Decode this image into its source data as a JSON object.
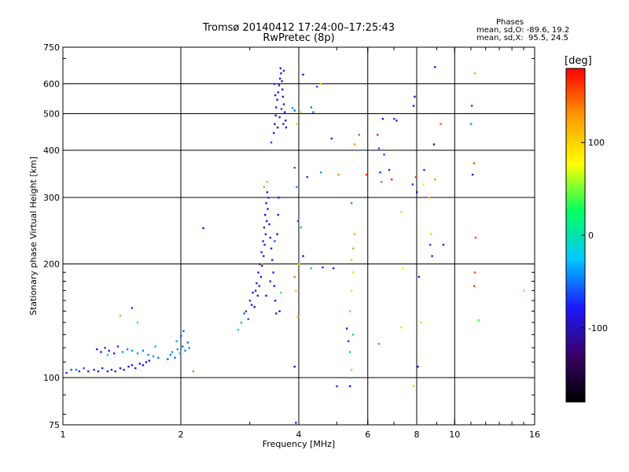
{
  "header": {
    "title": "Tromsø 20140412 17:24:00–17:25:43",
    "subtitle": "RwPretec (8p)"
  },
  "stats": {
    "heading": "Phases",
    "o_mode": "mean, sd,O: -89.6, 19.2",
    "x_mode": "mean, sd,X:  95.5, 24.5"
  },
  "colorbar": {
    "title": "[deg]",
    "range": [
      -180,
      180
    ],
    "ticks": [
      {
        "value": 100,
        "label": "100"
      },
      {
        "value": 0,
        "label": "0"
      },
      {
        "value": -100,
        "label": "-100"
      }
    ],
    "stops": [
      "#000000",
      "#3a006a",
      "#1a1aff",
      "#00c8ff",
      "#00ff60",
      "#ffff00",
      "#ff9a00",
      "#ff0000"
    ]
  },
  "chart_data": {
    "type": "scatter",
    "title": "Tromsø 20140412 17:24:00–17:25:43",
    "subtitle": "RwPretec (8p)",
    "xlabel": "Frequency [MHz]",
    "ylabel": "Stationary phase Virtual Height [km]",
    "x_scale": "log",
    "y_scale": "log",
    "xlim": [
      1,
      16
    ],
    "ylim": [
      75,
      750
    ],
    "grid": true,
    "x_ticks": [
      {
        "value": 1,
        "label": "1"
      },
      {
        "value": 2,
        "label": "2"
      },
      {
        "value": 4,
        "label": "4"
      },
      {
        "value": 6,
        "label": "6"
      },
      {
        "value": 8,
        "label": "8"
      },
      {
        "value": 10,
        "label": "10"
      },
      {
        "value": 16,
        "label": "16"
      }
    ],
    "x_gridlines": [
      2,
      4,
      6,
      8,
      10
    ],
    "y_ticks": [
      {
        "value": 75,
        "label": "75"
      },
      {
        "value": 100,
        "label": "100"
      },
      {
        "value": 200,
        "label": "200"
      },
      {
        "value": 300,
        "label": "300"
      },
      {
        "value": 400,
        "label": "400"
      },
      {
        "value": 500,
        "label": "500"
      },
      {
        "value": 600,
        "label": "600"
      },
      {
        "value": 750,
        "label": "750"
      }
    ],
    "y_gridlines": [
      100,
      200,
      300,
      400,
      500,
      600
    ],
    "color_variable": "phase [deg]",
    "points": [
      [
        1.02,
        103,
        -70
      ],
      [
        1.05,
        105,
        -60
      ],
      [
        1.08,
        105,
        -50
      ],
      [
        1.1,
        104,
        -70
      ],
      [
        1.13,
        106,
        -60
      ],
      [
        1.16,
        104,
        -75
      ],
      [
        1.2,
        105,
        -80
      ],
      [
        1.23,
        104,
        -75
      ],
      [
        1.26,
        106,
        -70
      ],
      [
        1.3,
        104,
        -80
      ],
      [
        1.33,
        105,
        -85
      ],
      [
        1.36,
        104,
        -80
      ],
      [
        1.4,
        106,
        -80
      ],
      [
        1.43,
        105,
        -85
      ],
      [
        1.47,
        107,
        -80
      ],
      [
        1.5,
        108,
        -85
      ],
      [
        1.53,
        106,
        -80
      ],
      [
        1.57,
        109,
        -85
      ],
      [
        1.6,
        108,
        -80
      ],
      [
        1.63,
        110,
        -85
      ],
      [
        1.66,
        111,
        -80
      ],
      [
        1.22,
        119,
        -80
      ],
      [
        1.25,
        117,
        -75
      ],
      [
        1.28,
        120,
        -70
      ],
      [
        1.31,
        118,
        -80
      ],
      [
        1.35,
        116,
        -75
      ],
      [
        1.38,
        121,
        -70
      ],
      [
        1.42,
        117,
        -40
      ],
      [
        1.46,
        119,
        -50
      ],
      [
        1.5,
        118,
        -45
      ],
      [
        1.55,
        116,
        -40
      ],
      [
        1.6,
        118,
        -50
      ],
      [
        1.65,
        115,
        -40
      ],
      [
        1.7,
        114,
        -45
      ],
      [
        1.75,
        113,
        -50
      ],
      [
        1.72,
        121,
        -30
      ],
      [
        1.3,
        115,
        -30
      ],
      [
        1.85,
        112,
        -60
      ],
      [
        1.88,
        115,
        -50
      ],
      [
        1.9,
        117,
        -40
      ],
      [
        1.93,
        113,
        -55
      ],
      [
        1.96,
        119,
        -45
      ],
      [
        1.99,
        116,
        -40
      ],
      [
        2.02,
        121,
        -50
      ],
      [
        2.05,
        118,
        -45
      ],
      [
        2.08,
        124,
        -50
      ],
      [
        2.1,
        120,
        -40
      ],
      [
        1.95,
        125,
        -35
      ],
      [
        2.0,
        129,
        -60
      ],
      [
        2.03,
        133,
        -55
      ],
      [
        2.28,
        249,
        -80
      ],
      [
        1.5,
        153,
        -75
      ],
      [
        1.55,
        140,
        30
      ],
      [
        1.4,
        146,
        120
      ],
      [
        2.15,
        104,
        140
      ],
      [
        2.8,
        134,
        -20
      ],
      [
        2.85,
        140,
        -35
      ],
      [
        2.9,
        148,
        -55
      ],
      [
        2.93,
        150,
        -70
      ],
      [
        2.97,
        143,
        -60
      ],
      [
        3.0,
        160,
        -70
      ],
      [
        3.03,
        156,
        -75
      ],
      [
        3.05,
        168,
        -80
      ],
      [
        3.08,
        154,
        -85
      ],
      [
        3.1,
        170,
        -75
      ],
      [
        3.12,
        178,
        -80
      ],
      [
        3.14,
        165,
        -85
      ],
      [
        3.15,
        190,
        -80
      ],
      [
        3.17,
        175,
        -75
      ],
      [
        3.18,
        200,
        -85
      ],
      [
        3.2,
        185,
        -80
      ],
      [
        3.21,
        215,
        -75
      ],
      [
        3.22,
        198,
        -85
      ],
      [
        3.24,
        230,
        -80
      ],
      [
        3.25,
        210,
        -85
      ],
      [
        3.26,
        250,
        -75
      ],
      [
        3.27,
        225,
        -80
      ],
      [
        3.28,
        270,
        -85
      ],
      [
        3.29,
        240,
        -80
      ],
      [
        3.3,
        290,
        -75
      ],
      [
        3.31,
        260,
        -85
      ],
      [
        3.32,
        310,
        -80
      ],
      [
        3.33,
        280,
        -85
      ],
      [
        3.34,
        300,
        -80
      ],
      [
        3.36,
        255,
        -85
      ],
      [
        3.38,
        235,
        -80
      ],
      [
        3.4,
        220,
        -85
      ],
      [
        3.42,
        205,
        -80
      ],
      [
        3.44,
        190,
        -85
      ],
      [
        3.46,
        175,
        -80
      ],
      [
        3.48,
        160,
        -85
      ],
      [
        3.5,
        148,
        -80
      ],
      [
        3.52,
        240,
        -85
      ],
      [
        3.54,
        270,
        -80
      ],
      [
        3.55,
        300,
        -85
      ],
      [
        3.38,
        180,
        -80
      ],
      [
        3.3,
        165,
        -85
      ],
      [
        3.26,
        320,
        130
      ],
      [
        3.32,
        330,
        120
      ],
      [
        3.22,
        200,
        140
      ],
      [
        3.35,
        300,
        -60
      ],
      [
        3.47,
        230,
        -60
      ],
      [
        3.6,
        168,
        30
      ],
      [
        3.57,
        150,
        -80
      ],
      [
        3.45,
        445,
        -85
      ],
      [
        3.47,
        470,
        -80
      ],
      [
        3.49,
        495,
        -85
      ],
      [
        3.5,
        520,
        -80
      ],
      [
        3.52,
        545,
        -85
      ],
      [
        3.54,
        570,
        -80
      ],
      [
        3.56,
        595,
        -85
      ],
      [
        3.58,
        620,
        -80
      ],
      [
        3.6,
        640,
        -85
      ],
      [
        3.62,
        610,
        -80
      ],
      [
        3.63,
        580,
        -85
      ],
      [
        3.64,
        555,
        -80
      ],
      [
        3.66,
        530,
        -85
      ],
      [
        3.68,
        505,
        -80
      ],
      [
        3.7,
        480,
        -85
      ],
      [
        3.71,
        460,
        -80
      ],
      [
        3.53,
        460,
        -80
      ],
      [
        3.57,
        490,
        -75
      ],
      [
        3.61,
        515,
        -70
      ],
      [
        3.65,
        470,
        -80
      ],
      [
        3.48,
        560,
        -85
      ],
      [
        3.59,
        660,
        -80
      ],
      [
        3.46,
        600,
        -70
      ],
      [
        3.66,
        650,
        -75
      ],
      [
        3.4,
        420,
        -70
      ],
      [
        3.85,
        518,
        -40
      ],
      [
        3.9,
        510,
        -60
      ],
      [
        3.95,
        470,
        100
      ],
      [
        4.05,
        505,
        100
      ],
      [
        4.1,
        635,
        -80
      ],
      [
        4.3,
        520,
        -50
      ],
      [
        4.35,
        505,
        -55
      ],
      [
        4.45,
        590,
        -60
      ],
      [
        4.55,
        600,
        110
      ],
      [
        3.9,
        360,
        -60
      ],
      [
        3.95,
        320,
        -40
      ],
      [
        4.05,
        250,
        -30
      ],
      [
        4.2,
        340,
        -70
      ],
      [
        4.55,
        350,
        -40
      ],
      [
        4.85,
        430,
        -80
      ],
      [
        3.98,
        260,
        -60
      ],
      [
        4.0,
        200,
        100
      ],
      [
        3.93,
        170,
        100
      ],
      [
        3.98,
        145,
        130
      ],
      [
        3.9,
        185,
        140
      ],
      [
        4.1,
        210,
        -80
      ],
      [
        4.3,
        195,
        -30
      ],
      [
        4.6,
        196,
        -70
      ],
      [
        4.9,
        195,
        -80
      ],
      [
        5.5,
        220,
        130
      ],
      [
        5.55,
        240,
        120
      ],
      [
        5.45,
        205,
        110
      ],
      [
        5.5,
        190,
        100
      ],
      [
        5.45,
        170,
        100
      ],
      [
        5.4,
        150,
        40
      ],
      [
        5.5,
        130,
        -20
      ],
      [
        5.3,
        135,
        -80
      ],
      [
        5.4,
        117,
        -20
      ],
      [
        5.35,
        125,
        -70
      ],
      [
        5.45,
        105,
        110
      ],
      [
        5.4,
        95,
        -80
      ],
      [
        5.45,
        100,
        -30
      ],
      [
        5.0,
        95,
        -70
      ],
      [
        5.45,
        290,
        -40
      ],
      [
        3.9,
        107,
        -100
      ],
      [
        3.93,
        76,
        -80
      ],
      [
        5.05,
        345,
        130
      ],
      [
        5.55,
        415,
        130
      ],
      [
        5.7,
        440,
        150
      ],
      [
        5.95,
        345,
        160
      ],
      [
        6.35,
        440,
        170
      ],
      [
        6.4,
        405,
        -60
      ],
      [
        6.45,
        350,
        -70
      ],
      [
        6.55,
        485,
        -80
      ],
      [
        6.5,
        330,
        150
      ],
      [
        6.6,
        390,
        -60
      ],
      [
        6.8,
        355,
        -75
      ],
      [
        6.9,
        335,
        170
      ],
      [
        7.0,
        485,
        -70
      ],
      [
        7.1,
        480,
        -75
      ],
      [
        7.3,
        275,
        100
      ],
      [
        7.35,
        195,
        80
      ],
      [
        7.3,
        136,
        60
      ],
      [
        6.4,
        123,
        -30
      ],
      [
        7.85,
        525,
        -80
      ],
      [
        7.9,
        555,
        -85
      ],
      [
        7.95,
        340,
        160
      ],
      [
        7.8,
        325,
        -70
      ],
      [
        8.0,
        310,
        -90
      ],
      [
        8.1,
        185,
        -80
      ],
      [
        8.2,
        140,
        100
      ],
      [
        8.05,
        107,
        -85
      ],
      [
        7.85,
        95,
        100
      ],
      [
        8.3,
        325,
        70
      ],
      [
        8.35,
        355,
        -70
      ],
      [
        8.6,
        300,
        120
      ],
      [
        8.65,
        225,
        -60
      ],
      [
        8.75,
        210,
        -75
      ],
      [
        8.7,
        240,
        110
      ],
      [
        8.9,
        335,
        130
      ],
      [
        8.85,
        415,
        -110
      ],
      [
        8.9,
        665,
        -80
      ],
      [
        9.2,
        470,
        150
      ],
      [
        9.35,
        225,
        -80
      ],
      [
        11.0,
        470,
        -40
      ],
      [
        11.05,
        525,
        -70
      ],
      [
        11.1,
        345,
        -90
      ],
      [
        11.2,
        370,
        160
      ],
      [
        11.25,
        640,
        120
      ],
      [
        11.3,
        235,
        160
      ],
      [
        11.25,
        190,
        150
      ],
      [
        11.2,
        175,
        160
      ],
      [
        11.5,
        142,
        40
      ],
      [
        15.0,
        170,
        50
      ]
    ]
  }
}
